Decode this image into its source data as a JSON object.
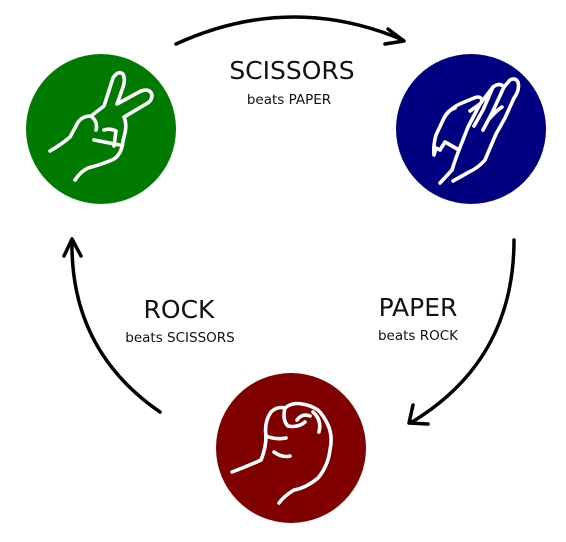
{
  "nodes": [
    {
      "id": "scissors",
      "color": "#007a00",
      "icon": "scissors-hand-icon"
    },
    {
      "id": "paper",
      "color": "#000080",
      "icon": "paper-hand-icon"
    },
    {
      "id": "rock",
      "color": "#800000",
      "icon": "rock-fist-icon"
    }
  ],
  "relations": [
    {
      "winner": "SCISSORS",
      "text": "beats PAPER"
    },
    {
      "winner": "PAPER",
      "text": "beats ROCK"
    },
    {
      "winner": "ROCK",
      "text": "beats SCISSORS"
    }
  ]
}
